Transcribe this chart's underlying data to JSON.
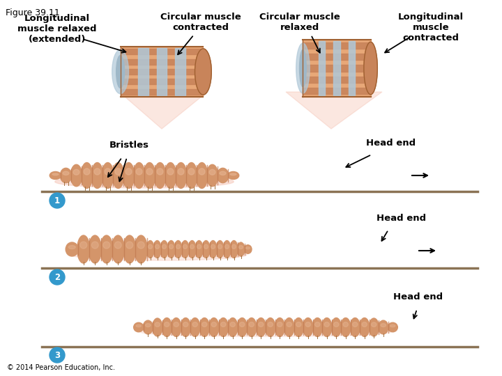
{
  "figure_num": "Figure 39.11",
  "bg_color": "#ffffff",
  "labels": {
    "long_relaxed": "Longitudinal\nmuscle relaxed\n(extended)",
    "circ_contracted": "Circular muscle\ncontracted",
    "circ_relaxed": "Circular muscle\nrelaxed",
    "long_contracted": "Longitudinal\nmuscle\ncontracted",
    "bristles": "Bristles",
    "head_end1": "Head end",
    "head_end2": "Head end",
    "head_end3": "Head end",
    "copyright": "© 2014 Pearson Education, Inc."
  },
  "colors": {
    "worm_body": "#D4956A",
    "worm_ring": "#C07850",
    "worm_light": "#E8B896",
    "barrel_outer": "#C8845A",
    "barrel_light": "#E8A878",
    "barrel_band": "#B0C8D8",
    "barrel_dark": "#A06030",
    "barrel_inner": "#9FB8C8",
    "ground_line": "#8B7355",
    "circle_num": "#3399CC",
    "circle_text": "#ffffff",
    "shadow": "#F5C0B0",
    "bristle": "#A07040",
    "cone": "#F5C0B0"
  },
  "num_circles": [
    "1",
    "2",
    "3"
  ]
}
